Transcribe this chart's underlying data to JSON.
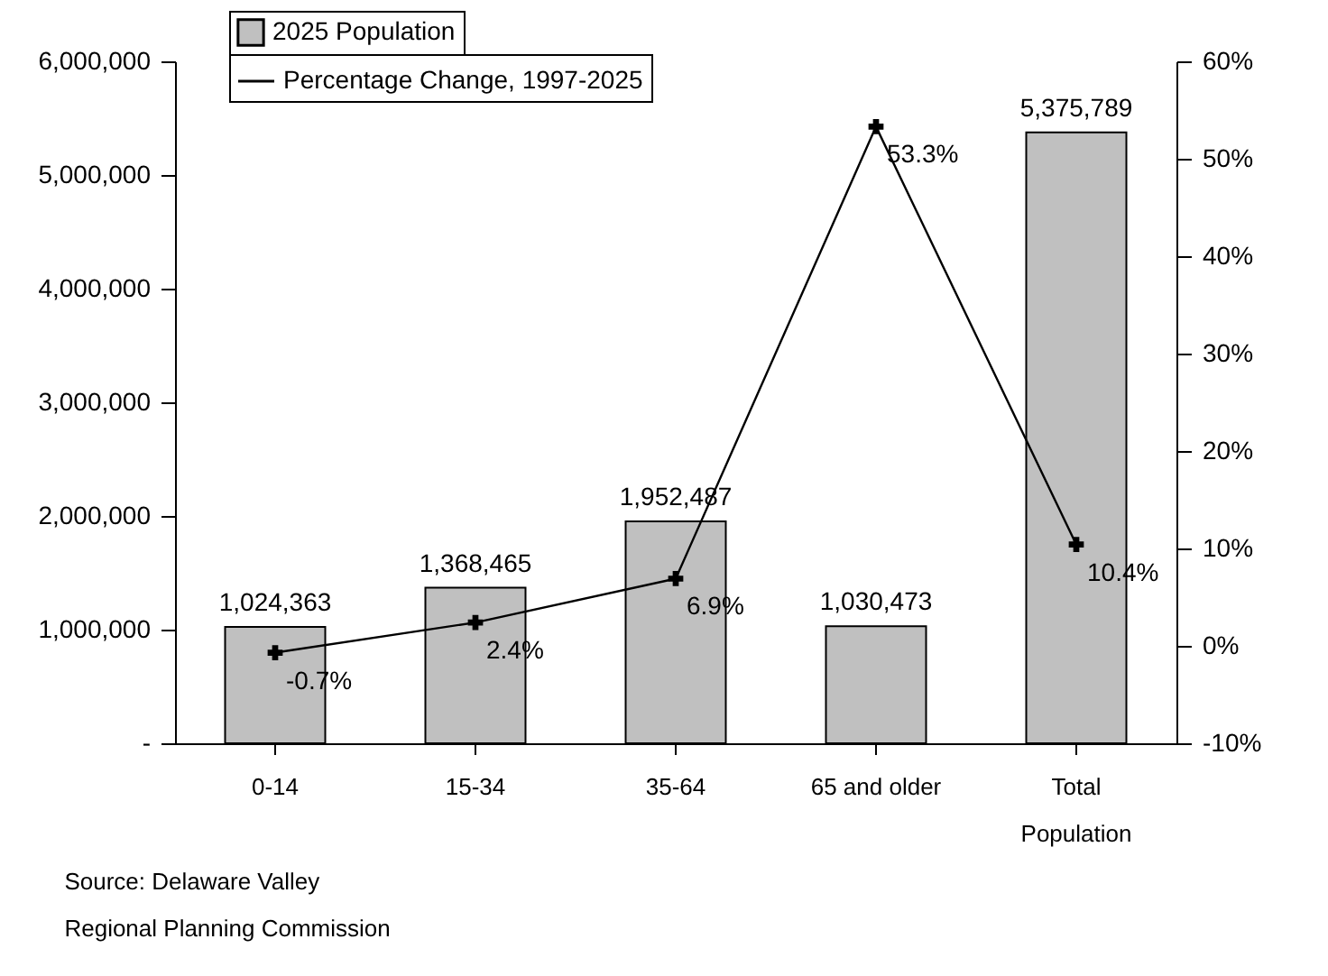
{
  "chart_data": {
    "type": "bar",
    "categories": [
      "0-14",
      "15-34",
      "35-64",
      "65 and older",
      "Total Population"
    ],
    "series": [
      {
        "name": "2025 Population",
        "color": "#c0c0c0",
        "values": [
          1024363,
          1368465,
          1952487,
          1030473,
          5375789
        ],
        "value_labels": [
          "1,024,363",
          "1,368,465",
          "1,952,487",
          "1,030,473",
          "5,375,789"
        ]
      },
      {
        "name": "Percentage Change, 1997-2025",
        "type": "line",
        "axis": "y2",
        "color": "#000000",
        "marker": "cross",
        "values": [
          -0.7,
          2.4,
          6.9,
          53.3,
          10.4
        ],
        "value_labels": [
          "-0.7%",
          "2.4%",
          "6.9%",
          "53.3%",
          "10.4%"
        ]
      }
    ],
    "ylim": [
      0,
      6000000
    ],
    "yticks": [
      {
        "value": 0,
        "label": "-"
      },
      {
        "value": 1000000,
        "label": "1,000,000"
      },
      {
        "value": 2000000,
        "label": "2,000,000"
      },
      {
        "value": 3000000,
        "label": "3,000,000"
      },
      {
        "value": 4000000,
        "label": "4,000,000"
      },
      {
        "value": 5000000,
        "label": "5,000,000"
      },
      {
        "value": 6000000,
        "label": "6,000,000"
      }
    ],
    "y2lim": [
      -10,
      60
    ],
    "y2ticks": [
      {
        "value": -10,
        "label": "-10%"
      },
      {
        "value": 0,
        "label": "0%"
      },
      {
        "value": 10,
        "label": "10%"
      },
      {
        "value": 20,
        "label": "20%"
      },
      {
        "value": 30,
        "label": "30%"
      },
      {
        "value": 40,
        "label": "40%"
      },
      {
        "value": 50,
        "label": "50%"
      },
      {
        "value": 60,
        "label": "60%"
      }
    ],
    "grid": false,
    "legend": "top left",
    "annotations": [
      "Source: Delaware Valley Regional Planning Commission"
    ]
  }
}
